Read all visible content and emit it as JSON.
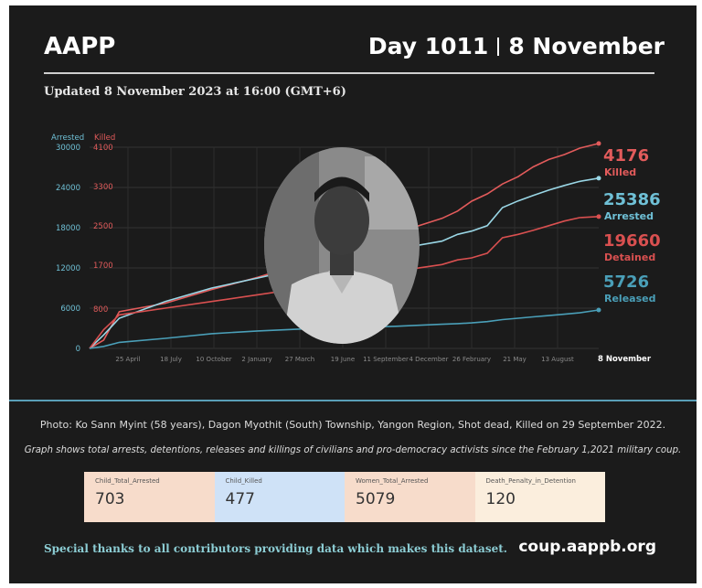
{
  "header": {
    "brand": "AAPP",
    "day": "Day 1011",
    "date": "8 November",
    "updated": "Updated 8 November 2023 at 16:00 (GMT+6)"
  },
  "chart_data": {
    "type": "line",
    "x_tick_labels": [
      "25 April",
      "18 July",
      "10 October",
      "2 January",
      "27 March",
      "19 June",
      "11 September",
      "4 December",
      "26 February",
      "21 May",
      "13 August",
      "8 November"
    ],
    "x": [
      "2021-02-01",
      "2021-03-01",
      "2021-04-01",
      "2021-07-01",
      "2021-10-01",
      "2022-01-01",
      "2022-04-01",
      "2022-07-01",
      "2022-10-01",
      "2023-01-01",
      "2023-02-01",
      "2023-03-01",
      "2023-04-01",
      "2023-05-01",
      "2023-06-01",
      "2023-07-01",
      "2023-08-01",
      "2023-09-01",
      "2023-10-01",
      "2023-11-08"
    ],
    "axes": {
      "left_outer": {
        "label": "Arrested",
        "ticks": [
          0,
          6000,
          12000,
          18000,
          24000,
          30000
        ],
        "range": [
          0,
          30000
        ]
      },
      "left_inner": {
        "label": "Killed",
        "ticks": [
          "800",
          "1700",
          "2500",
          "3300",
          "4100"
        ]
      }
    },
    "series": [
      {
        "name": "Killed",
        "axis": "killed",
        "color": "#e25b5b",
        "values": [
          0,
          170,
          750,
          920,
          1200,
          1450,
          1730,
          2050,
          2350,
          2650,
          2800,
          3000,
          3150,
          3350,
          3500,
          3700,
          3850,
          3950,
          4080,
          4176
        ]
      },
      {
        "name": "Arrested",
        "axis": "arrested",
        "color": "#9ad7e6",
        "values": [
          0,
          2000,
          4500,
          7000,
          9000,
          10500,
          12000,
          13300,
          14800,
          16000,
          17000,
          17500,
          18300,
          21000,
          22000,
          22800,
          23600,
          24300,
          24900,
          25386
        ]
      },
      {
        "name": "Detained",
        "axis": "arrested",
        "color": "#d95050",
        "values": [
          0,
          2800,
          5000,
          6000,
          7000,
          8000,
          9000,
          10500,
          11500,
          12500,
          13200,
          13500,
          14200,
          16500,
          17000,
          17600,
          18300,
          19000,
          19500,
          19660
        ]
      },
      {
        "name": "Released",
        "axis": "arrested",
        "color": "#4a9fb8",
        "values": [
          0,
          300,
          900,
          1500,
          2200,
          2600,
          2900,
          3100,
          3300,
          3600,
          3700,
          3800,
          4000,
          4300,
          4500,
          4700,
          4900,
          5100,
          5300,
          5726
        ]
      }
    ],
    "end_labels": [
      {
        "value": "4176",
        "text": "Killed",
        "color": "#e25b5b"
      },
      {
        "value": "25386",
        "text": "Arrested",
        "color": "#6fc0d6"
      },
      {
        "value": "19660",
        "text": "Detained",
        "color": "#d95050"
      },
      {
        "value": "5726",
        "text": "Released",
        "color": "#4a9fb8"
      }
    ],
    "grid": true
  },
  "caption": "Photo: Ko Sann Myint (58 years), Dagon Myothit (South) Township, Yangon Region, Shot dead, Killed on 29 September 2022.",
  "note": "Graph shows total arrests, detentions, releases and killings of civilians and pro-democracy activists since the February 1,2021 military coup.",
  "stats": [
    {
      "label": "Child_Total_Arrested",
      "value": "703",
      "bg": "#f7dccb"
    },
    {
      "label": "Child_Killed",
      "value": "477",
      "bg": "#cfe2f7"
    },
    {
      "label": "Women_Total_Arrested",
      "value": "5079",
      "bg": "#f7dccb"
    },
    {
      "label": "Death_Penalty_in_Detention",
      "value": "120",
      "bg": "#fbeedd"
    }
  ],
  "footer": {
    "thanks": "Special thanks to all contributors providing data which makes this dataset.",
    "site": "coup.aappb.org"
  }
}
